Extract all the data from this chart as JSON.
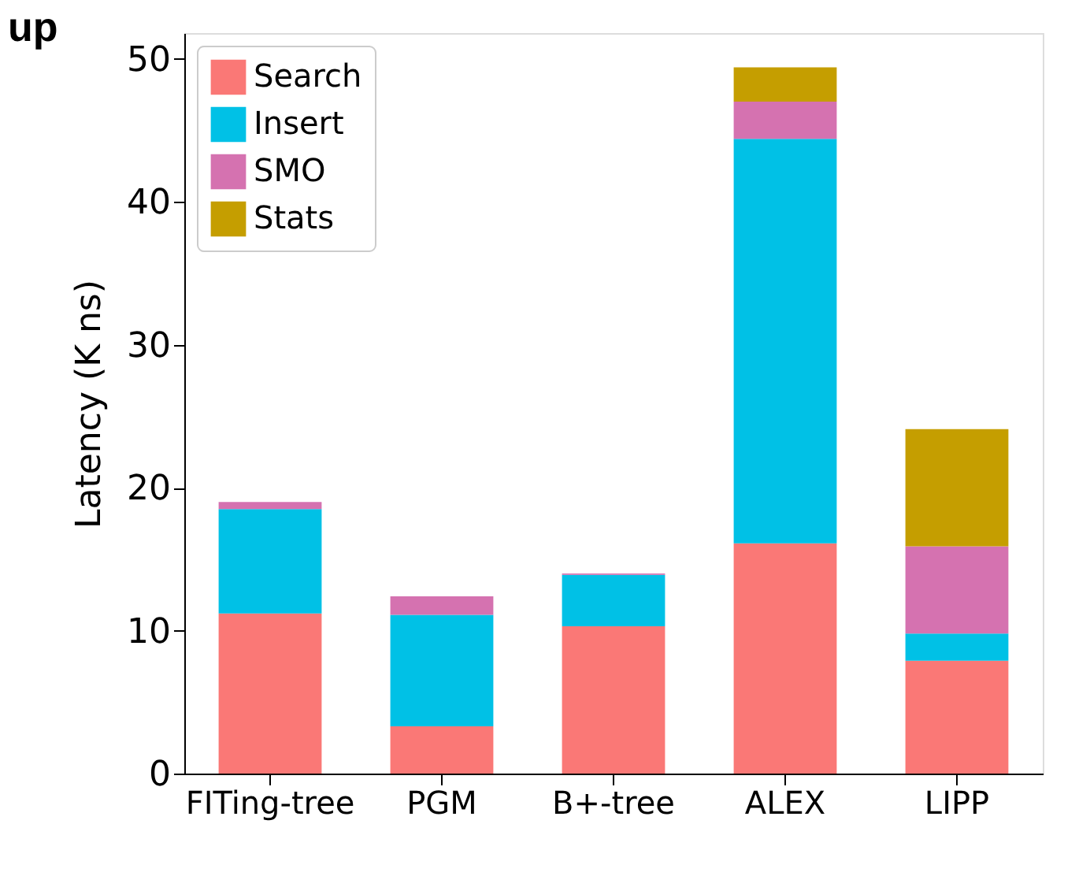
{
  "chart_data": {
    "type": "bar",
    "title": "up",
    "ylabel": "Latency (K ns)",
    "stacked": true,
    "categories": [
      "FITing-tree",
      "PGM",
      "B+-tree",
      "ALEX",
      "LIPP"
    ],
    "series": [
      {
        "name": "Search",
        "color": "#fa7876",
        "values": [
          11.2,
          3.3,
          10.3,
          16.1,
          7.9
        ]
      },
      {
        "name": "Insert",
        "color": "#00c1e6",
        "values": [
          7.3,
          7.8,
          3.6,
          28.3,
          1.9
        ]
      },
      {
        "name": "SMO",
        "color": "#d572b0",
        "values": [
          0.5,
          1.3,
          0.1,
          2.6,
          6.1
        ]
      },
      {
        "name": "Stats",
        "color": "#c59e00",
        "values": [
          0,
          0,
          0,
          2.4,
          8.2
        ]
      }
    ],
    "ylim": [
      0,
      51.8
    ],
    "yticks": [
      0,
      10,
      20,
      30,
      40,
      50
    ],
    "grid": false,
    "legend": "top left"
  }
}
